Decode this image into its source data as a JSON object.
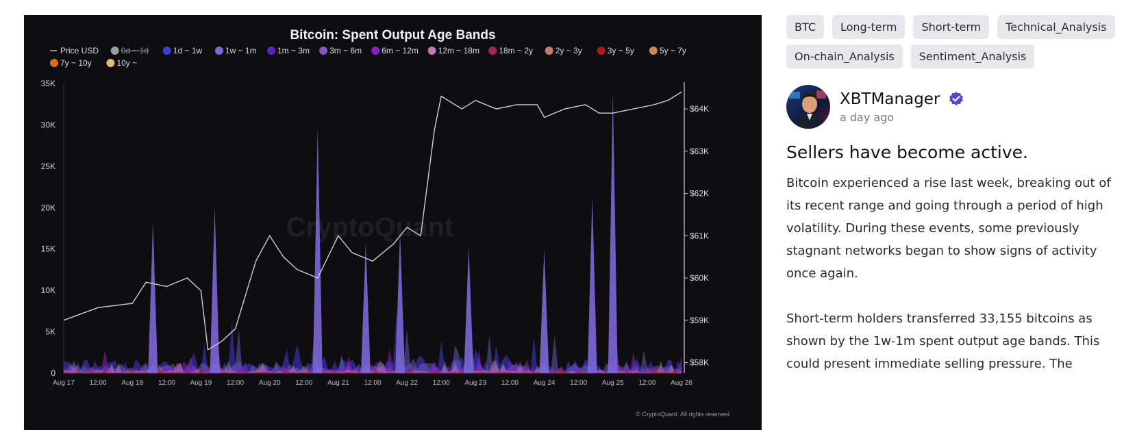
{
  "chart_data": {
    "type": "area",
    "title": "Bitcoin: Spent Output Age Bands",
    "legend": {
      "placement": "top",
      "entries": [
        {
          "name": "Price USD",
          "color": "#bdbdbd",
          "style": "line"
        },
        {
          "name": "0d ~ 1d",
          "color": "#9e9e9e",
          "disabled": true
        },
        {
          "name": "1d ~ 1w",
          "color": "#3f3bd9"
        },
        {
          "name": "1w ~ 1m",
          "color": "#7b67d6"
        },
        {
          "name": "1m ~ 3m",
          "color": "#5a23c8"
        },
        {
          "name": "3m ~ 6m",
          "color": "#8a52c8"
        },
        {
          "name": "6m ~ 12m",
          "color": "#8a1fc9"
        },
        {
          "name": "12m ~ 18m",
          "color": "#c07ab0"
        },
        {
          "name": "18m ~ 2y",
          "color": "#a8245e"
        },
        {
          "name": "2y ~ 3y",
          "color": "#c8796e"
        },
        {
          "name": "3y ~ 5y",
          "color": "#a81b1b"
        },
        {
          "name": "5y ~ 7y",
          "color": "#c98a5a"
        },
        {
          "name": "7y ~ 10y",
          "color": "#d87018"
        },
        {
          "name": "10y ~",
          "color": "#d8c07a"
        }
      ]
    },
    "x_ticks": [
      "Aug 17",
      "12:00",
      "Aug 18",
      "12:00",
      "Aug 19",
      "12:00",
      "Aug 20",
      "12:00",
      "Aug 21",
      "12:00",
      "Aug 22",
      "12:00",
      "Aug 23",
      "12:00",
      "Aug 24",
      "12:00",
      "Aug 25",
      "12:00",
      "Aug 26"
    ],
    "y_left": {
      "ticks": [
        "0",
        "5K",
        "10K",
        "15K",
        "20K",
        "25K",
        "30K",
        "35K"
      ],
      "range": [
        0,
        35000
      ]
    },
    "y_right": {
      "ticks": [
        "$58K",
        "$59K",
        "$60K",
        "$61K",
        "$62K",
        "$63K",
        "$64K"
      ],
      "range": [
        57750,
        64600
      ]
    },
    "grid": false,
    "watermark": "CryptoQuant",
    "credit": "© CryptoQuant. All rights reserved",
    "price_usd": {
      "x_days": [
        0,
        0.5,
        1,
        1.2,
        1.5,
        1.8,
        2.0,
        2.1,
        2.3,
        2.5,
        2.8,
        3.0,
        3.2,
        3.4,
        3.7,
        4.0,
        4.2,
        4.5,
        4.8,
        5.0,
        5.2,
        5.4,
        5.5,
        5.8,
        6.0,
        6.3,
        6.6,
        6.9,
        7.0,
        7.3,
        7.6,
        7.8,
        8.0,
        8.3,
        8.6,
        8.8,
        9.0
      ],
      "values": [
        59000,
        59300,
        59400,
        59900,
        59800,
        60000,
        59700,
        58300,
        58500,
        58800,
        60400,
        61000,
        60500,
        60200,
        60000,
        61000,
        60600,
        60400,
        60800,
        61200,
        61000,
        63500,
        64300,
        64000,
        64200,
        64000,
        64100,
        64100,
        63800,
        64000,
        64100,
        63900,
        63900,
        64000,
        64100,
        64200,
        64400
      ]
    },
    "spent_output_peaks": {
      "band": "1w ~ 1m",
      "x_days": [
        1.3,
        2.2,
        3.7,
        4.4,
        4.9,
        5.9,
        7.0,
        7.7,
        8.0
      ],
      "values": [
        18300,
        20100,
        29800,
        15800,
        17000,
        15300,
        15000,
        21400,
        34000
      ]
    }
  },
  "tags": [
    "BTC",
    "Long-term",
    "Short-term",
    "Technical_Analysis",
    "On-chain_Analysis",
    "Sentiment_Analysis"
  ],
  "author": {
    "name": "XBTManager",
    "time": "a day ago"
  },
  "post": {
    "title": "Sellers have become active.",
    "paragraphs": [
      "Bitcoin experienced a rise last week, breaking out of its recent range and going through a period of high volatility. During these events, some previously stagnant networks began to show signs of activity once again.",
      "Short-term holders transferred 33,155 bitcoins as shown by the 1w-1m spent output age bands. This could present immediate selling pressure. The"
    ]
  },
  "colors": {
    "verified": "#5b3fe0",
    "chart_bg": "#0e0e10",
    "tag_bg": "#e8e8ec"
  }
}
